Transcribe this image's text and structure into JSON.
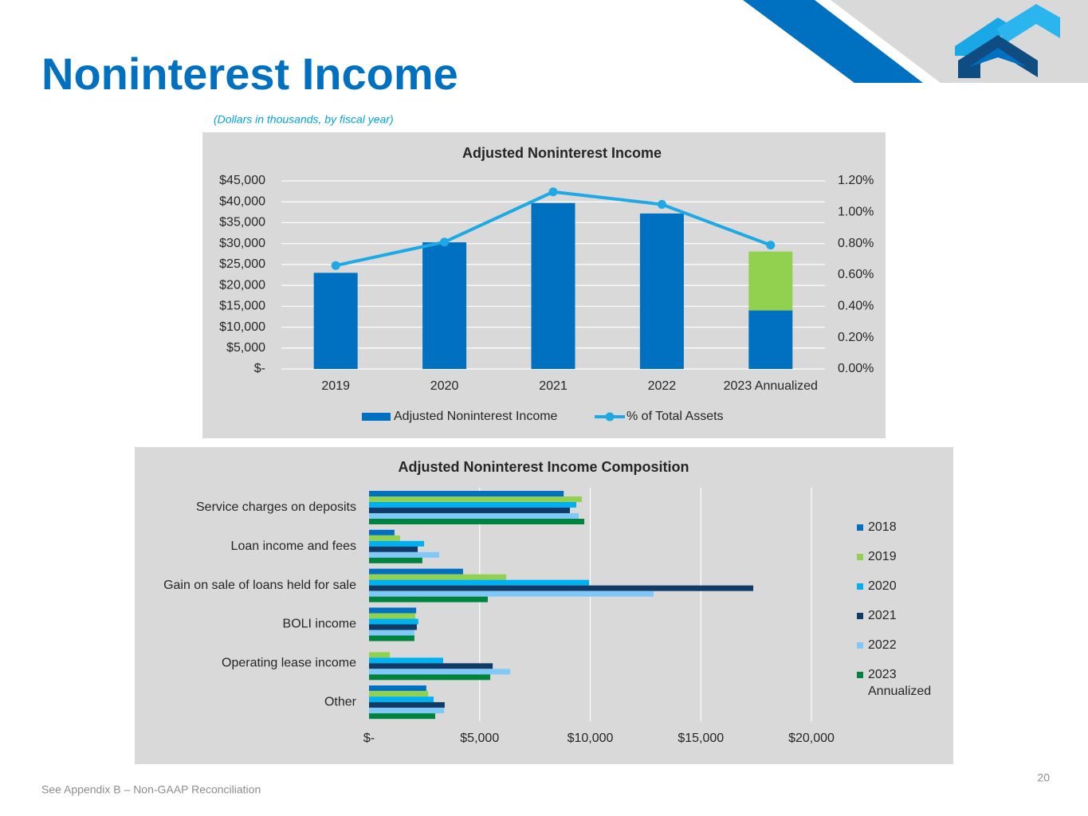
{
  "header": {
    "title": "Noninterest Income",
    "subtitle": "(Dollars in thousands, by fiscal year)"
  },
  "chart_data": [
    {
      "type": "bar",
      "title": "Adjusted Noninterest Income",
      "categories": [
        "2019",
        "2020",
        "2021",
        "2022",
        "2023 Annualized"
      ],
      "stacked": true,
      "series": [
        {
          "name": "Adjusted Noninterest Income",
          "color": "#0070c0",
          "values": [
            23000,
            30300,
            39700,
            37200,
            14000
          ]
        },
        {
          "color": "#92d050",
          "values": [
            null,
            null,
            null,
            null,
            14100
          ]
        },
        {
          "name": "% of Total Assets",
          "color": "#1ea8e4",
          "type": "line",
          "axis": "y2",
          "values": [
            0.66,
            0.81,
            1.13,
            1.05,
            0.79
          ]
        }
      ],
      "ylim": [
        0,
        45000
      ],
      "yticks": [
        {
          "value": 0,
          "label": "$-"
        },
        {
          "value": 5000,
          "label": "$5,000"
        },
        {
          "value": 10000,
          "label": "$10,000"
        },
        {
          "value": 15000,
          "label": "$15,000"
        },
        {
          "value": 20000,
          "label": "$20,000"
        },
        {
          "value": 25000,
          "label": "$25,000"
        },
        {
          "value": 30000,
          "label": "$30,000"
        },
        {
          "value": 35000,
          "label": "$35,000"
        },
        {
          "value": 40000,
          "label": "$40,000"
        },
        {
          "value": 45000,
          "label": "$45,000"
        }
      ],
      "y2lim": [
        0,
        1.2
      ],
      "y2ticks": [
        {
          "value": 0,
          "label": "0.00%"
        },
        {
          "value": 0.2,
          "label": "0.20%"
        },
        {
          "value": 0.4,
          "label": "0.40%"
        },
        {
          "value": 0.6,
          "label": "0.60%"
        },
        {
          "value": 0.8,
          "label": "0.80%"
        },
        {
          "value": 1.0,
          "label": "1.00%"
        },
        {
          "value": 1.2,
          "label": "1.20%"
        }
      ],
      "grid": true,
      "legend": "bottom"
    },
    {
      "type": "hbar",
      "title": "Adjusted Noninterest Income Composition",
      "categories": [
        "Service charges on deposits",
        "Loan income and fees",
        "Gain on sale of loans held for sale",
        "BOLI income",
        "Operating lease income",
        "Other"
      ],
      "series": [
        {
          "name": "2018",
          "color": "#0070c0",
          "values": [
            8800,
            1150,
            4250,
            2130,
            null,
            2590
          ]
        },
        {
          "name": "2019",
          "color": "#92d050",
          "values": [
            9620,
            1400,
            6200,
            2090,
            940,
            2670
          ]
        },
        {
          "name": "2020",
          "color": "#00b0f0",
          "values": [
            9370,
            2490,
            9950,
            2230,
            3350,
            2920
          ]
        },
        {
          "name": "2021",
          "color": "#0f3b66",
          "values": [
            9080,
            2200,
            17370,
            2160,
            5590,
            3420
          ]
        },
        {
          "name": "2022",
          "color": "#7fc8f8",
          "values": [
            9480,
            3170,
            12860,
            2050,
            6380,
            3390
          ]
        },
        {
          "name": "2023 Annualized",
          "color": "#00843d",
          "values": [
            9730,
            2410,
            5370,
            2050,
            5480,
            2990
          ]
        }
      ],
      "xlim": [
        0,
        20000
      ],
      "xticks": [
        {
          "value": 0,
          "label": "$-"
        },
        {
          "value": 5000,
          "label": "$5,000"
        },
        {
          "value": 10000,
          "label": "$10,000"
        },
        {
          "value": 15000,
          "label": "$15,000"
        },
        {
          "value": 20000,
          "label": "$20,000"
        }
      ],
      "grid": true,
      "legend": "right"
    }
  ],
  "footer": {
    "note": "See Appendix B – Non-GAAP Reconciliation",
    "page": 20
  }
}
